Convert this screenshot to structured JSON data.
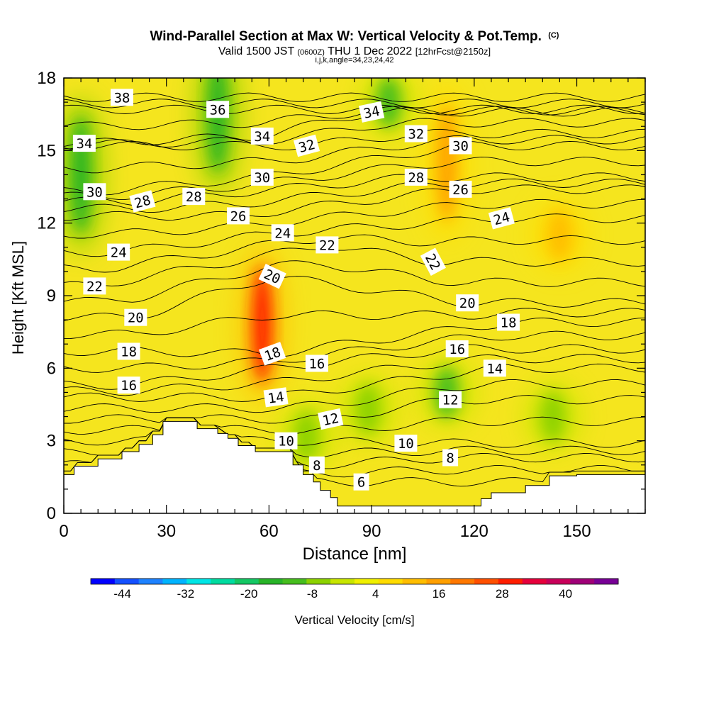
{
  "chart_data": {
    "type": "heatmap",
    "title": "Wind-Parallel Section at Max W: Vertical Velocity & Pot.Temp.",
    "title_mark": "(C)",
    "subtitle_parts": [
      "Valid 1500 JST",
      "(0600Z)",
      "THU 1 Dec 2022",
      "[12hrFcst@2150z]"
    ],
    "subtitle2": "i,j,k,angle=34,23,24,42",
    "xlabel": "Distance [nm]",
    "ylabel": "Height [Kft MSL]",
    "xlim": [
      0,
      170
    ],
    "ylim": [
      0,
      18
    ],
    "xticks": [
      0,
      30,
      60,
      90,
      120,
      150
    ],
    "yticks": [
      0,
      3,
      6,
      9,
      12,
      15,
      18
    ],
    "colorbar": {
      "label": "Vertical Velocity [cm/s]",
      "ticks": [
        -44,
        -32,
        -20,
        -8,
        4,
        16,
        28,
        40
      ],
      "range": [
        -50,
        50
      ],
      "colors": [
        "#0000ff",
        "#1450ff",
        "#1e82ff",
        "#00b4ff",
        "#00e6e6",
        "#00dca0",
        "#14c864",
        "#28b428",
        "#46be1e",
        "#8cd200",
        "#c8e600",
        "#f0f000",
        "#ffdc00",
        "#ffbe00",
        "#ffa000",
        "#ff7800",
        "#ff5000",
        "#ff1e00",
        "#e6003c",
        "#c8005a",
        "#a00078",
        "#780096"
      ]
    },
    "velocity_features": [
      {
        "label": "updraft-core",
        "x": 58,
        "y": 7.8,
        "w": 28
      },
      {
        "label": "updraft-upper-right",
        "x": 112,
        "y": 14.5,
        "w": 18
      },
      {
        "label": "updraft-right-mid",
        "x": 145,
        "y": 11.5,
        "w": 12
      },
      {
        "label": "downdraft-upper-left",
        "x": 5,
        "y": 14,
        "w": -16
      },
      {
        "label": "downdraft-upper-center",
        "x": 45,
        "y": 16.5,
        "w": -18
      },
      {
        "label": "downdraft-upper-center-2",
        "x": 95,
        "y": 17,
        "w": -10
      },
      {
        "label": "downdraft-low-right",
        "x": 112,
        "y": 5,
        "w": -10
      },
      {
        "label": "downdraft-low-mid",
        "x": 89,
        "y": 4.3,
        "w": -8
      },
      {
        "label": "downdraft-low-far-right",
        "x": 143,
        "y": 4,
        "w": -8
      },
      {
        "label": "downdraft-low-left",
        "x": 71,
        "y": 3.2,
        "w": -6
      }
    ],
    "terrain": {
      "x": [
        0,
        3,
        3,
        10,
        10,
        17,
        17,
        22,
        22,
        26,
        26,
        29,
        29,
        39,
        39,
        45,
        45,
        48,
        48,
        51,
        51,
        56,
        56,
        67,
        67,
        70,
        70,
        73,
        73,
        75,
        75,
        78,
        78,
        80,
        80,
        83,
        83,
        122,
        122,
        125,
        125,
        135,
        135,
        142,
        142,
        150,
        150,
        170
      ],
      "y": [
        1.6,
        1.6,
        1.95,
        1.95,
        2.25,
        2.25,
        2.55,
        2.55,
        2.85,
        2.85,
        3.25,
        3.25,
        3.8,
        3.8,
        3.5,
        3.5,
        3.3,
        3.3,
        3.1,
        3.1,
        2.8,
        2.8,
        2.55,
        2.55,
        2.0,
        2.0,
        1.6,
        1.6,
        1.3,
        1.3,
        0.95,
        0.95,
        0.65,
        0.65,
        0.3,
        0.3,
        0.3,
        0.3,
        0.6,
        0.6,
        0.85,
        0.85,
        1.15,
        1.15,
        1.55,
        1.55,
        1.6,
        1.6
      ]
    },
    "theta_labels": [
      {
        "text": "38",
        "x": 17,
        "y": 17.2,
        "rot": 0
      },
      {
        "text": "36",
        "x": 45,
        "y": 16.7,
        "rot": 0
      },
      {
        "text": "34",
        "x": 6,
        "y": 15.3,
        "rot": 0
      },
      {
        "text": "34",
        "x": 58,
        "y": 15.6,
        "rot": 0
      },
      {
        "text": "34",
        "x": 90,
        "y": 16.6,
        "rot": -12
      },
      {
        "text": "32",
        "x": 71,
        "y": 15.2,
        "rot": -15
      },
      {
        "text": "32",
        "x": 103,
        "y": 15.7,
        "rot": 0
      },
      {
        "text": "30",
        "x": 9,
        "y": 13.3,
        "rot": 0
      },
      {
        "text": "30",
        "x": 58,
        "y": 13.9,
        "rot": 0
      },
      {
        "text": "30",
        "x": 116,
        "y": 15.2,
        "rot": 0
      },
      {
        "text": "28",
        "x": 23,
        "y": 12.9,
        "rot": -15
      },
      {
        "text": "28",
        "x": 38,
        "y": 13.1,
        "rot": 0
      },
      {
        "text": "28",
        "x": 103,
        "y": 13.9,
        "rot": 0
      },
      {
        "text": "26",
        "x": 51,
        "y": 12.3,
        "rot": 0
      },
      {
        "text": "26",
        "x": 116,
        "y": 13.4,
        "rot": 0
      },
      {
        "text": "24",
        "x": 16,
        "y": 10.8,
        "rot": 0
      },
      {
        "text": "24",
        "x": 64,
        "y": 11.6,
        "rot": 0
      },
      {
        "text": "24",
        "x": 128,
        "y": 12.2,
        "rot": -15
      },
      {
        "text": "22",
        "x": 9,
        "y": 9.4,
        "rot": 0
      },
      {
        "text": "22",
        "x": 77,
        "y": 11.1,
        "rot": 0
      },
      {
        "text": "22",
        "x": 108,
        "y": 10.4,
        "rot": 62
      },
      {
        "text": "20",
        "x": 21,
        "y": 8.1,
        "rot": 0
      },
      {
        "text": "20",
        "x": 61,
        "y": 9.8,
        "rot": 25
      },
      {
        "text": "20",
        "x": 118,
        "y": 8.7,
        "rot": 0
      },
      {
        "text": "18",
        "x": 19,
        "y": 6.7,
        "rot": 0
      },
      {
        "text": "18",
        "x": 61,
        "y": 6.6,
        "rot": -20
      },
      {
        "text": "18",
        "x": 130,
        "y": 7.9,
        "rot": 0
      },
      {
        "text": "16",
        "x": 19,
        "y": 5.3,
        "rot": 0
      },
      {
        "text": "16",
        "x": 74,
        "y": 6.2,
        "rot": 0
      },
      {
        "text": "16",
        "x": 115,
        "y": 6.8,
        "rot": 0
      },
      {
        "text": "14",
        "x": 62,
        "y": 4.8,
        "rot": -8
      },
      {
        "text": "14",
        "x": 126,
        "y": 6.0,
        "rot": 0
      },
      {
        "text": "12",
        "x": 78,
        "y": 3.9,
        "rot": -12
      },
      {
        "text": "12",
        "x": 113,
        "y": 4.7,
        "rot": 0
      },
      {
        "text": "10",
        "x": 65,
        "y": 3.0,
        "rot": 0
      },
      {
        "text": "10",
        "x": 100,
        "y": 2.9,
        "rot": 0
      },
      {
        "text": "8",
        "x": 74,
        "y": 2.0,
        "rot": 0
      },
      {
        "text": "8",
        "x": 113,
        "y": 2.3,
        "rot": 0
      },
      {
        "text": "6",
        "x": 87,
        "y": 1.3,
        "rot": 0
      }
    ]
  }
}
